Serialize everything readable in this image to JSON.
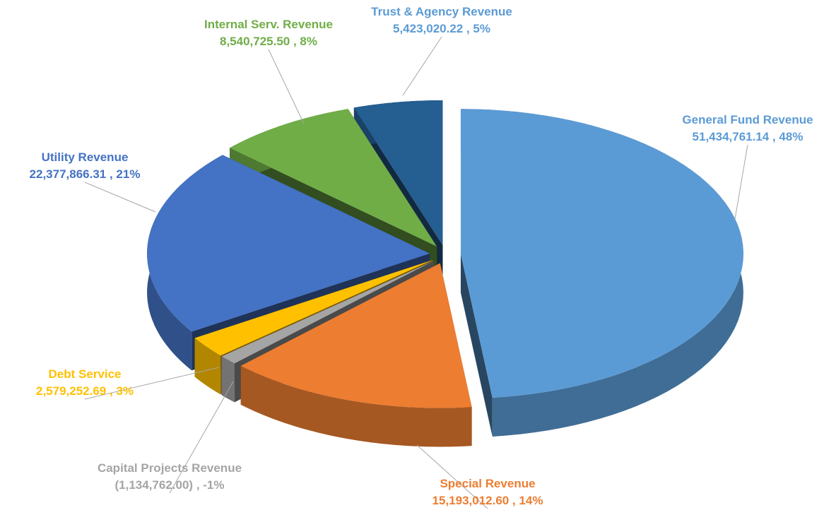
{
  "chart_data": {
    "type": "pie",
    "categories": [
      "General Fund Revenue",
      "Special Revenue",
      "Capital Projects Revenue",
      "Debt Service",
      "Utility Revenue",
      "Internal Serv. Revenue",
      "Trust & Agency Revenue"
    ],
    "values": [
      51434761.14,
      15193012.6,
      -1134762.0,
      2579252.69,
      22377866.31,
      8540725.5,
      5423020.22
    ],
    "value_labels": [
      "51,434,761.14",
      "15,193,012.60",
      "(1,134,762.00)",
      "2,579,252.69",
      "22,377,866.31",
      "8,540,725.50",
      "5,423,020.22"
    ],
    "percent_labels": [
      "48%",
      "14%",
      "-1%",
      "3%",
      "21%",
      "8%",
      "5%"
    ],
    "colors": [
      "#5b9bd5",
      "#ed7d31",
      "#a5a5a5",
      "#ffc000",
      "#4472c4",
      "#70ad47",
      "#255e91"
    ]
  }
}
